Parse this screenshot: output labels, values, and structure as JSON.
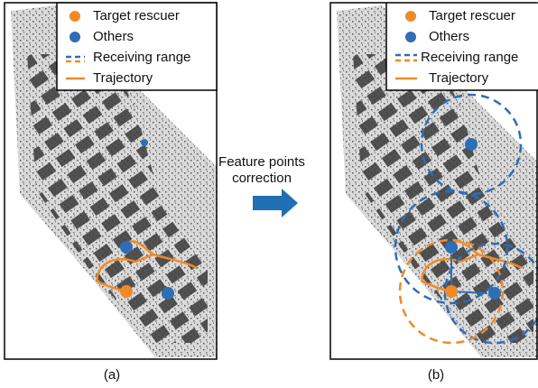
{
  "legend": [
    "Target rescuer",
    "Others",
    "Receiving range",
    "Trajectory"
  ],
  "arrow_label": [
    "Feature points",
    "correction"
  ],
  "captions": [
    "(a)",
    "(b)"
  ]
}
